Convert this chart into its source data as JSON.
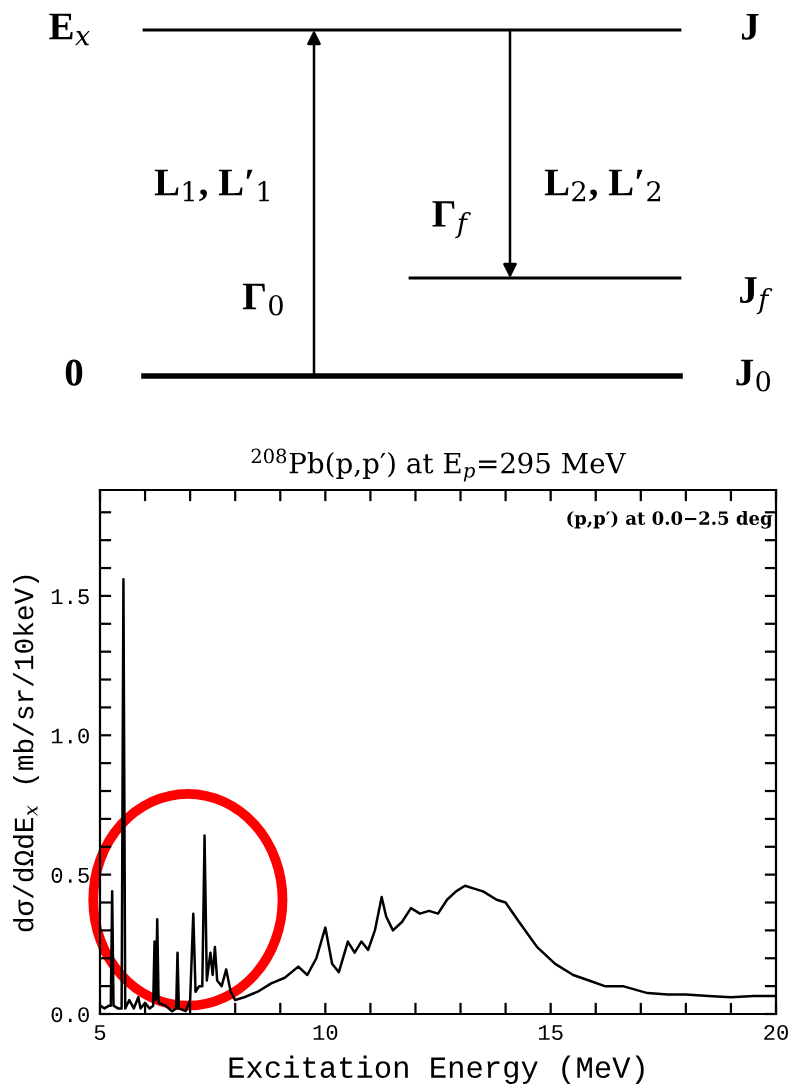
{
  "chart_data": [
    {
      "type": "other",
      "annotations": [
        "E$_{x}$",
        "J",
        "L$_{1}$, L′$_{1}$",
        "Γ$_{0}$",
        "Γ$_{f}$",
        "L$_{2}$, L′$_{2}$",
        "J$_{f}$",
        "0",
        "J$_{0}$"
      ]
    },
    {
      "type": "line",
      "title": "$^{208}$Pb(p,p′) at E$_{p}$=295 MeV",
      "xlabel": "Excitation Energy (MeV)",
      "ylabel": "dσ/dΩdE$_{x}$ (mb/sr/10keV)",
      "annotations": [
        "(p,p′) at 0.0−2.5 deg"
      ],
      "xlim": [
        5,
        20
      ],
      "ylim": [
        0,
        1.88
      ],
      "xticks": [
        5,
        {
          "value": 6,
          "label": null
        },
        {
          "value": 7,
          "label": null
        },
        {
          "value": 8,
          "label": null
        },
        {
          "value": 9,
          "label": null
        },
        10,
        {
          "value": 11,
          "label": null
        },
        {
          "value": 12,
          "label": null
        },
        {
          "value": 13,
          "label": null
        },
        {
          "value": 14,
          "label": null
        },
        15,
        {
          "value": 16,
          "label": null
        },
        {
          "value": 17,
          "label": null
        },
        {
          "value": 18,
          "label": null
        },
        {
          "value": 19,
          "label": null
        },
        20
      ],
      "yticks": [
        {
          "value": 0,
          "label": "0.0"
        },
        {
          "value": 0.1,
          "label": null
        },
        {
          "value": 0.2,
          "label": null
        },
        {
          "value": 0.3,
          "label": null
        },
        {
          "value": 0.4,
          "label": null
        },
        {
          "value": 0.5,
          "label": "0.5"
        },
        {
          "value": 0.6,
          "label": null
        },
        {
          "value": 0.7,
          "label": null
        },
        {
          "value": 0.8,
          "label": null
        },
        {
          "value": 0.9,
          "label": null
        },
        {
          "value": 1.0,
          "label": "1.0"
        },
        {
          "value": 1.1,
          "label": null
        },
        {
          "value": 1.2,
          "label": null
        },
        {
          "value": 1.3,
          "label": null
        },
        {
          "value": 1.4,
          "label": null
        },
        {
          "value": 1.5,
          "label": "1.5"
        },
        {
          "value": 1.6,
          "label": null
        },
        {
          "value": 1.7,
          "label": null
        },
        {
          "value": 1.8,
          "label": null
        }
      ],
      "series": [
        {
          "color": "#000000",
          "x": [
            5.0,
            5.1,
            5.2,
            5.24,
            5.27,
            5.3,
            5.4,
            5.48,
            5.52,
            5.56,
            5.65,
            5.75,
            5.85,
            5.9,
            6.0,
            6.1,
            6.18,
            6.21,
            6.24,
            6.27,
            6.3,
            6.45,
            6.6,
            6.69,
            6.72,
            6.75,
            6.9,
            7.0,
            7.07,
            7.12,
            7.2,
            7.27,
            7.32,
            7.37,
            7.45,
            7.5,
            7.55,
            7.6,
            7.7,
            7.8,
            7.9,
            8.0,
            8.2,
            8.5,
            8.8,
            9.1,
            9.4,
            9.6,
            9.8,
            10.0,
            10.15,
            10.3,
            10.5,
            10.65,
            10.8,
            10.95,
            11.1,
            11.25,
            11.35,
            11.5,
            11.7,
            11.9,
            12.1,
            12.3,
            12.5,
            12.7,
            12.9,
            13.1,
            13.3,
            13.5,
            13.8,
            14.0,
            14.3,
            14.7,
            15.1,
            15.5,
            15.85,
            16.2,
            16.6,
            17.15,
            17.6,
            18.0,
            18.5,
            19.0,
            19.5,
            20.0
          ],
          "values": [
            0.03,
            0.02,
            0.03,
            0.03,
            0.44,
            0.03,
            0.02,
            0.02,
            1.56,
            0.02,
            0.05,
            0.02,
            0.06,
            0.02,
            0.04,
            0.02,
            0.03,
            0.26,
            0.05,
            0.34,
            0.04,
            0.03,
            0.01,
            0.02,
            0.22,
            0.02,
            0.01,
            0.05,
            0.36,
            0.08,
            0.1,
            0.1,
            0.64,
            0.12,
            0.22,
            0.14,
            0.24,
            0.12,
            0.1,
            0.16,
            0.08,
            0.05,
            0.06,
            0.08,
            0.11,
            0.13,
            0.17,
            0.14,
            0.2,
            0.31,
            0.18,
            0.15,
            0.26,
            0.22,
            0.26,
            0.23,
            0.3,
            0.42,
            0.35,
            0.3,
            0.33,
            0.38,
            0.36,
            0.37,
            0.36,
            0.41,
            0.44,
            0.46,
            0.45,
            0.44,
            0.41,
            0.4,
            0.33,
            0.24,
            0.18,
            0.14,
            0.12,
            0.1,
            0.1,
            0.075,
            0.07,
            0.07,
            0.065,
            0.06,
            0.065,
            0.065
          ]
        }
      ]
    }
  ]
}
